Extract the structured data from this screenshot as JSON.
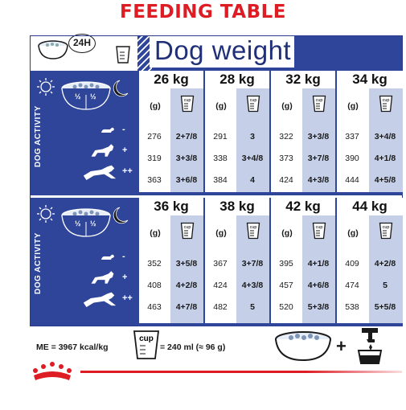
{
  "title": "FEEDING TABLE",
  "header": {
    "badge": "24H",
    "label": "Dog weight"
  },
  "side": {
    "activity_label": "DOG ACTIVITY",
    "half": "½"
  },
  "activity_levels": [
    "-",
    "+",
    "++"
  ],
  "units": {
    "grams": "(g)",
    "cup": "cup"
  },
  "blocks": [
    {
      "columns": [
        {
          "weight": "26 kg",
          "rows": [
            {
              "g": "276",
              "cup": "2+7/8"
            },
            {
              "g": "319",
              "cup": "3+3/8"
            },
            {
              "g": "363",
              "cup": "3+6/8"
            }
          ]
        },
        {
          "weight": "28 kg",
          "rows": [
            {
              "g": "291",
              "cup": "3"
            },
            {
              "g": "338",
              "cup": "3+4/8"
            },
            {
              "g": "384",
              "cup": "4"
            }
          ]
        },
        {
          "weight": "32 kg",
          "rows": [
            {
              "g": "322",
              "cup": "3+3/8"
            },
            {
              "g": "373",
              "cup": "3+7/8"
            },
            {
              "g": "424",
              "cup": "4+3/8"
            }
          ]
        },
        {
          "weight": "34 kg",
          "rows": [
            {
              "g": "337",
              "cup": "3+4/8"
            },
            {
              "g": "390",
              "cup": "4+1/8"
            },
            {
              "g": "444",
              "cup": "4+5/8"
            }
          ]
        }
      ]
    },
    {
      "columns": [
        {
          "weight": "36 kg",
          "rows": [
            {
              "g": "352",
              "cup": "3+5/8"
            },
            {
              "g": "408",
              "cup": "4+2/8"
            },
            {
              "g": "463",
              "cup": "4+7/8"
            }
          ]
        },
        {
          "weight": "38 kg",
          "rows": [
            {
              "g": "367",
              "cup": "3+7/8"
            },
            {
              "g": "424",
              "cup": "4+3/8"
            },
            {
              "g": "482",
              "cup": "5"
            }
          ]
        },
        {
          "weight": "42 kg",
          "rows": [
            {
              "g": "395",
              "cup": "4+1/8"
            },
            {
              "g": "457",
              "cup": "4+6/8"
            },
            {
              "g": "520",
              "cup": "5+3/8"
            }
          ]
        },
        {
          "weight": "44 kg",
          "rows": [
            {
              "g": "409",
              "cup": "4+2/8"
            },
            {
              "g": "474",
              "cup": "5"
            },
            {
              "g": "538",
              "cup": "5+5/8"
            }
          ]
        }
      ]
    }
  ],
  "footer": {
    "me": "ME = 3967 kcal/kg",
    "cup_label": "cup",
    "equivalence": "= 240 ml (≈ 96 g)",
    "plus": "+"
  },
  "colors": {
    "brand_red": "#dd1c24",
    "navy": "#2f4599",
    "cup_column": "#c5d0e8"
  }
}
